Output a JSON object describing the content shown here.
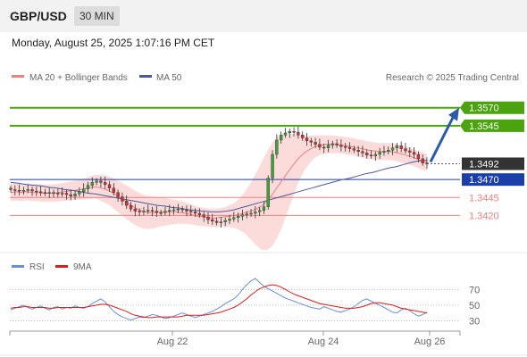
{
  "header": {
    "pair": "GBP/USD",
    "timeframe": "30 MIN",
    "datetime": "Monday, August 25, 2025 1:07:16 PM CET",
    "copyright": "Research © 2025 Trading Central"
  },
  "legend": {
    "ma20": "MA 20 + Bollinger Bands",
    "ma50": "MA 50",
    "rsi": "RSI",
    "ma9": "9MA"
  },
  "colors": {
    "resistance": "#4aa30f",
    "support": "#f08080",
    "pivot": "#1a3fa8",
    "current": "#333333",
    "bullish": "#3da13b",
    "bearish": "#d32f2f",
    "bollinger_fill": "#fbd5d5",
    "ma20": "#f08080",
    "ma50": "#4a5a9a",
    "rsi": "#6b8fd6",
    "ma9": "#d32020",
    "arrow": "#2a5aa8"
  },
  "chart_data": [
    {
      "type": "candlestick",
      "x_axis_labels": [
        "Aug 22",
        "Aug 24",
        "Aug 26"
      ],
      "ylim": [
        1.3372,
        1.3602
      ],
      "levels": [
        {
          "label": "1.3570",
          "value": 1.357,
          "kind": "resistance"
        },
        {
          "label": "1.3545",
          "value": 1.3545,
          "kind": "resistance"
        },
        {
          "label": "1.3492",
          "value": 1.3492,
          "kind": "current"
        },
        {
          "label": "1.3470",
          "value": 1.347,
          "kind": "pivot"
        },
        {
          "label": "1.3445",
          "value": 1.3445,
          "kind": "support"
        },
        {
          "label": "1.3420",
          "value": 1.342,
          "kind": "support"
        }
      ],
      "close": [
        1.3456,
        1.3455,
        1.3454,
        1.3455,
        1.3456,
        1.3454,
        1.3453,
        1.3452,
        1.3451,
        1.3452,
        1.3451,
        1.345,
        1.3451,
        1.3449,
        1.3447,
        1.345,
        1.3453,
        1.3457,
        1.3462,
        1.3466,
        1.3468,
        1.3466,
        1.3463,
        1.3458,
        1.3452,
        1.3446,
        1.344,
        1.3434,
        1.3429,
        1.3426,
        1.3425,
        1.3426,
        1.3427,
        1.3426,
        1.3424,
        1.3424,
        1.3426,
        1.3427,
        1.3428,
        1.3429,
        1.3428,
        1.3426,
        1.3425,
        1.3423,
        1.3421,
        1.3418,
        1.3414,
        1.3412,
        1.341,
        1.3411,
        1.3413,
        1.3415,
        1.3417,
        1.3419,
        1.3421,
        1.3422,
        1.3423,
        1.3425,
        1.3427,
        1.3432,
        1.3472,
        1.3505,
        1.3525,
        1.3532,
        1.3535,
        1.3537,
        1.3536,
        1.3532,
        1.3528,
        1.3524,
        1.3522,
        1.3519,
        1.3515,
        1.3514,
        1.3518,
        1.352,
        1.3518,
        1.3516,
        1.3515,
        1.3513,
        1.3511,
        1.3509,
        1.3507,
        1.3504,
        1.3503,
        1.3505,
        1.3508,
        1.3509,
        1.3511,
        1.3514,
        1.3517,
        1.3513,
        1.351,
        1.3508,
        1.3505,
        1.3499,
        1.3493,
        1.3492
      ],
      "ma20": [
        1.3452,
        1.3453,
        1.3452,
        1.3453,
        1.3452,
        1.3452,
        1.3451,
        1.3451,
        1.3451,
        1.3452,
        1.3453,
        1.3454,
        1.3455,
        1.3456,
        1.3457,
        1.3459,
        1.346,
        1.3458,
        1.3456,
        1.3452,
        1.3447,
        1.3442,
        1.3437,
        1.3432,
        1.3428,
        1.3425,
        1.3424,
        1.3424,
        1.3425,
        1.3425,
        1.3425,
        1.3425,
        1.3424,
        1.3423,
        1.3421,
        1.3419,
        1.3418,
        1.3417,
        1.3416,
        1.3417,
        1.3418,
        1.3419,
        1.342,
        1.3422,
        1.3424,
        1.3426,
        1.3429,
        1.3433,
        1.344,
        1.3449,
        1.346,
        1.347,
        1.3481,
        1.3491,
        1.35,
        1.3507,
        1.3512,
        1.3516,
        1.3518,
        1.3519,
        1.3519,
        1.3519,
        1.3518,
        1.3517,
        1.3516,
        1.3514,
        1.3513,
        1.3511,
        1.351,
        1.3509,
        1.3509,
        1.3509,
        1.3508,
        1.3506,
        1.3504,
        1.3502,
        1.3499,
        1.3496,
        1.3494
      ],
      "ma50": [
        1.3466,
        1.3465,
        1.3463,
        1.3462,
        1.3461,
        1.3459,
        1.3458,
        1.3456,
        1.3455,
        1.3453,
        1.3451,
        1.345,
        1.3448,
        1.3446,
        1.3444,
        1.3442,
        1.344,
        1.3438,
        1.3436,
        1.3434,
        1.3433,
        1.3431,
        1.343,
        1.3428,
        1.3427,
        1.3426,
        1.3425,
        1.3425,
        1.3426,
        1.3428,
        1.3431,
        1.3434,
        1.3437,
        1.344,
        1.3443,
        1.3446,
        1.3449,
        1.3452,
        1.3455,
        1.3458,
        1.3461,
        1.3464,
        1.3467,
        1.347,
        1.3472,
        1.3475,
        1.3478,
        1.348,
        1.3483,
        1.3486,
        1.3488,
        1.3491,
        1.3494,
        1.3496,
        1.3497
      ],
      "projection_target": 1.357
    },
    {
      "type": "line",
      "title": "RSI",
      "yticks": [
        70,
        50,
        30
      ],
      "ylim": [
        18,
        92
      ],
      "series": [
        {
          "name": "RSI",
          "values": [
            44,
            46,
            48,
            50,
            47,
            45,
            47,
            49,
            46,
            44,
            47,
            48,
            45,
            47,
            46,
            49,
            47,
            46,
            48,
            52,
            55,
            58,
            54,
            48,
            42,
            38,
            35,
            33,
            31,
            33,
            35,
            34,
            36,
            38,
            37,
            35,
            33,
            34,
            36,
            38,
            40,
            38,
            36,
            34,
            36,
            38,
            40,
            42,
            45,
            48,
            52,
            55,
            58,
            63,
            70,
            76,
            81,
            84,
            79,
            74,
            71,
            68,
            65,
            62,
            59,
            57,
            55,
            53,
            51,
            49,
            47,
            46,
            45,
            48,
            46,
            44,
            42,
            41,
            43,
            45,
            48,
            52,
            56,
            58,
            55,
            52,
            50,
            47,
            44,
            41,
            40,
            44,
            46,
            43,
            39,
            36,
            38,
            41
          ]
        },
        {
          "name": "9MA",
          "values": [
            46,
            47,
            47,
            48,
            48,
            47,
            47,
            47,
            47,
            46,
            46,
            47,
            47,
            47,
            47,
            47,
            47,
            47,
            48,
            49,
            50,
            51,
            51,
            50,
            48,
            46,
            44,
            42,
            39,
            37,
            36,
            35,
            34,
            34,
            35,
            35,
            35,
            35,
            35,
            35,
            36,
            37,
            37,
            37,
            37,
            37,
            38,
            39,
            40,
            41,
            43,
            45,
            47,
            50,
            54,
            58,
            63,
            67,
            71,
            73,
            75,
            76,
            75,
            73,
            70,
            67,
            64,
            62,
            60,
            58,
            56,
            54,
            52,
            51,
            50,
            49,
            48,
            47,
            46,
            46,
            46,
            47,
            48,
            50,
            52,
            53,
            53,
            52,
            51,
            50,
            48,
            46,
            45,
            44,
            43,
            42,
            41,
            40
          ]
        }
      ]
    }
  ]
}
